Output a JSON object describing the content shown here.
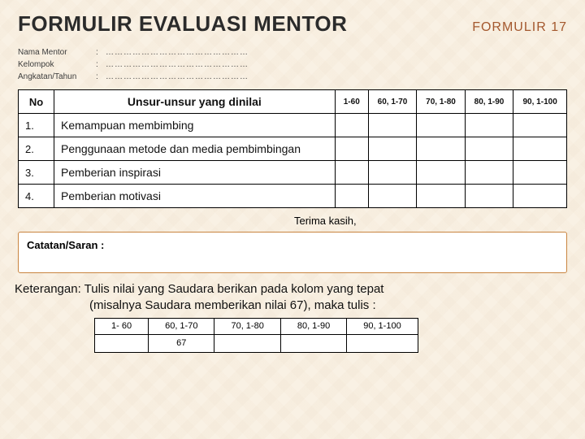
{
  "header": {
    "title": "FORMULIR EVALUASI MENTOR",
    "form_label": "FORMULIR  17"
  },
  "fields": {
    "f1_label": "Nama Mentor",
    "f2_label": "Kelompok",
    "f3_label": "Angkatan/Tahun",
    "colon": ":",
    "dots": "…………………………………………"
  },
  "table": {
    "col_no": "No",
    "col_item": "Unsur-unsur yang dinilai",
    "score_cols": [
      "1-60",
      "60, 1-70",
      "70, 1-80",
      "80, 1-90",
      "90, 1-100"
    ],
    "rows": [
      {
        "no": "1.",
        "desc": "Kemampuan membimbing"
      },
      {
        "no": "2.",
        "desc": "Penggunaan metode dan media pembimbingan"
      },
      {
        "no": "3.",
        "desc": "Pemberian inspirasi"
      },
      {
        "no": "4.",
        "desc": "Pemberian motivasi"
      }
    ]
  },
  "thanks": "Terima kasih,",
  "notes_label": "Catatan/Saran :",
  "keterangan_line1": "Keterangan: Tulis nilai yang Saudara berikan pada kolom yang tepat",
  "keterangan_line2": "(misalnya Saudara memberikan nilai 67), maka tulis :",
  "ranges": {
    "headers": [
      "1- 60",
      "60, 1-70",
      "70, 1-80",
      "80, 1-90",
      "90, 1-100"
    ],
    "value": "67"
  },
  "colors": {
    "bg": "#f9f1e4",
    "accent": "#a4582e",
    "border": "#000000",
    "notes_border": "#c9843f"
  }
}
